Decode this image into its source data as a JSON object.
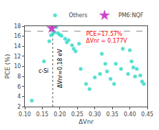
{
  "chart_data": {
    "type": "scatter",
    "xlabel": "ΔVnr",
    "ylabel": "PCE (%)",
    "xlim": [
      0.1,
      0.45
    ],
    "ylim": [
      2,
      18
    ],
    "xticks": [
      {
        "value": 0.1,
        "label": "0.10"
      },
      {
        "value": 0.15,
        "label": "0.15"
      },
      {
        "value": 0.2,
        "label": "0.20"
      },
      {
        "value": 0.25,
        "label": "0.25"
      },
      {
        "value": 0.3,
        "label": "0.30"
      },
      {
        "value": 0.35,
        "label": "0.35"
      },
      {
        "value": 0.4,
        "label": "0.40"
      },
      {
        "value": 0.45,
        "label": "0.45"
      }
    ],
    "yticks": [
      2,
      4,
      6,
      8,
      10,
      12,
      14,
      16,
      18
    ],
    "grid": false,
    "legend": "upper right",
    "series": [
      {
        "name": "Others",
        "color": "#44ddcc",
        "marker": "circle",
        "x": [
          0.12,
          0.155,
          0.17,
          0.175,
          0.18,
          0.185,
          0.19,
          0.195,
          0.2,
          0.205,
          0.215,
          0.22,
          0.225,
          0.235,
          0.24,
          0.245,
          0.255,
          0.26,
          0.275,
          0.285,
          0.3,
          0.315,
          0.32,
          0.33,
          0.335,
          0.345,
          0.355,
          0.36,
          0.375,
          0.38,
          0.395,
          0.4,
          0.405,
          0.41,
          0.415,
          0.42,
          0.43,
          0.435,
          0.44
        ],
        "values": [
          3.2,
          11.0,
          15.0,
          16.2,
          16.5,
          16.8,
          17.8,
          16.6,
          16.3,
          16.1,
          15.5,
          14.8,
          15.2,
          14.2,
          13.5,
          13.0,
          14.5,
          9.5,
          6.5,
          5.5,
          7.8,
          8.5,
          12.5,
          10.5,
          9.0,
          7.5,
          6.5,
          10.5,
          9.5,
          13.5,
          8.5,
          13.2,
          11.0,
          9.8,
          8.0,
          9.5,
          8.2,
          7.0,
          6.5
        ]
      },
      {
        "name": "PM6:NQF",
        "color": "#cc44cc",
        "marker": "star",
        "x": [
          0.177
        ],
        "values": [
          17.57
        ]
      }
    ],
    "reference_lines": [
      {
        "axis": "y",
        "value": 17.0,
        "color": "#888888",
        "line_style": "dashed"
      },
      {
        "axis": "x",
        "value": 0.18,
        "color": "#555555",
        "line_style": "dotted"
      }
    ],
    "annotations": [
      {
        "text": "c-Si",
        "color": "#000000"
      },
      {
        "text": "ΔVnr=0.18 eV",
        "color": "#000000"
      },
      {
        "text": "PCE=17.57%",
        "color": "#ff0000"
      },
      {
        "text": "ΔVnr = 0.177V",
        "color": "#ff0000"
      }
    ]
  }
}
